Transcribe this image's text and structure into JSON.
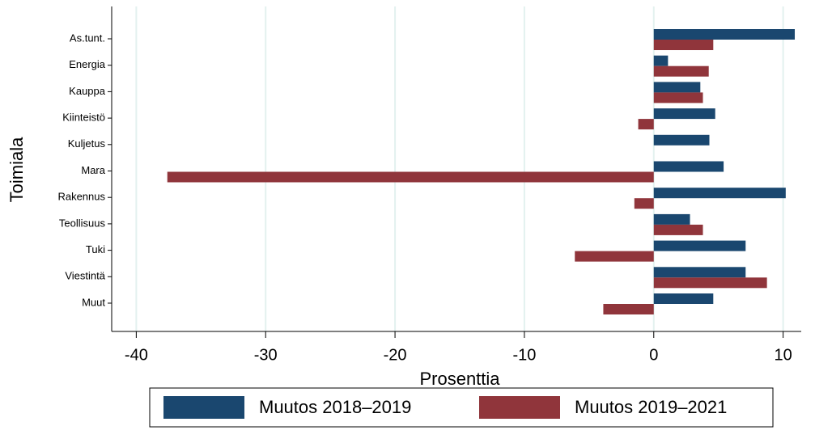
{
  "chart_data": {
    "type": "barh",
    "xlabel": "Prosenttia",
    "ylabel": "Toimiala",
    "categories": [
      "As.tunt.",
      "Energia",
      "Kauppa",
      "Kiinteistö",
      "Kuljetus",
      "Mara",
      "Rakennus",
      "Teollisuus",
      "Tuki",
      "Viestintä",
      "Muut"
    ],
    "series": [
      {
        "name": "Muutos 2018–2019",
        "color": "#1a476f",
        "values": [
          10.9,
          1.1,
          3.6,
          4.75,
          4.3,
          5.4,
          10.2,
          2.8,
          7.1,
          7.1,
          4.6
        ]
      },
      {
        "name": "Muutos 2019–2021",
        "color": "#90353b",
        "values": [
          4.6,
          4.25,
          3.8,
          -1.2,
          null,
          -37.6,
          -1.5,
          3.8,
          -6.1,
          8.75,
          -3.9
        ]
      }
    ],
    "xlim": [
      -41.9,
      11.4
    ],
    "xticks": [
      -40,
      -30,
      -20,
      -10,
      0,
      10
    ],
    "grid": true,
    "legend": "bottom"
  }
}
